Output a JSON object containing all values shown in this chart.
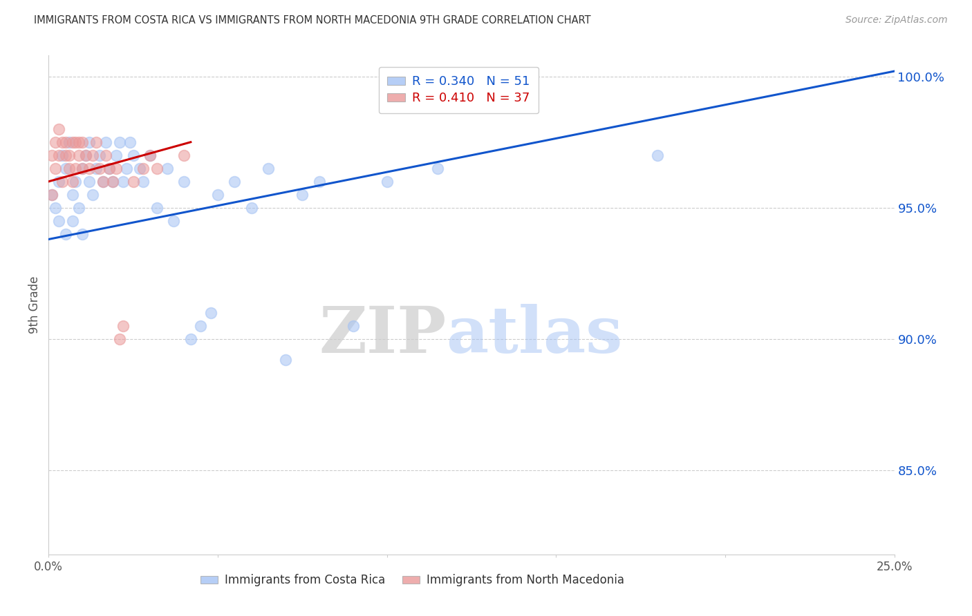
{
  "title": "IMMIGRANTS FROM COSTA RICA VS IMMIGRANTS FROM NORTH MACEDONIA 9TH GRADE CORRELATION CHART",
  "source": "Source: ZipAtlas.com",
  "ylabel": "9th Grade",
  "legend_blue_r": "R = 0.340",
  "legend_blue_n": "N = 51",
  "legend_pink_r": "R = 0.410",
  "legend_pink_n": "N = 37",
  "legend_blue_label": "Immigrants from Costa Rica",
  "legend_pink_label": "Immigrants from North Macedonia",
  "blue_color": "#a4c2f4",
  "pink_color": "#ea9999",
  "blue_line_color": "#1155cc",
  "pink_line_color": "#cc0000",
  "watermark_zip": "ZIP",
  "watermark_atlas": "atlas",
  "xlim": [
    0.0,
    0.25
  ],
  "ylim": [
    0.818,
    1.008
  ],
  "yticks": [
    0.85,
    0.9,
    0.95,
    1.0
  ],
  "ytick_labels": [
    "85.0%",
    "90.0%",
    "95.0%",
    "100.0%"
  ],
  "xticks": [
    0.0,
    0.05,
    0.1,
    0.15,
    0.2,
    0.25
  ],
  "xtick_labels": [
    "0.0%",
    "",
    "",
    "",
    "",
    "25.0%"
  ],
  "blue_x": [
    0.001,
    0.002,
    0.003,
    0.003,
    0.004,
    0.005,
    0.005,
    0.006,
    0.007,
    0.007,
    0.008,
    0.009,
    0.01,
    0.01,
    0.011,
    0.012,
    0.012,
    0.013,
    0.014,
    0.015,
    0.016,
    0.017,
    0.018,
    0.019,
    0.02,
    0.021,
    0.022,
    0.023,
    0.024,
    0.025,
    0.027,
    0.028,
    0.03,
    0.032,
    0.035,
    0.037,
    0.04,
    0.042,
    0.045,
    0.048,
    0.05,
    0.055,
    0.06,
    0.065,
    0.07,
    0.075,
    0.08,
    0.09,
    0.1,
    0.115,
    0.18
  ],
  "blue_y": [
    0.955,
    0.95,
    0.945,
    0.96,
    0.97,
    0.94,
    0.965,
    0.975,
    0.955,
    0.945,
    0.96,
    0.95,
    0.965,
    0.94,
    0.97,
    0.975,
    0.96,
    0.955,
    0.965,
    0.97,
    0.96,
    0.975,
    0.965,
    0.96,
    0.97,
    0.975,
    0.96,
    0.965,
    0.975,
    0.97,
    0.965,
    0.96,
    0.97,
    0.95,
    0.965,
    0.945,
    0.96,
    0.9,
    0.905,
    0.91,
    0.955,
    0.96,
    0.95,
    0.965,
    0.892,
    0.955,
    0.96,
    0.905,
    0.96,
    0.965,
    0.97
  ],
  "pink_x": [
    0.001,
    0.001,
    0.002,
    0.002,
    0.003,
    0.003,
    0.004,
    0.004,
    0.005,
    0.005,
    0.006,
    0.006,
    0.007,
    0.007,
    0.008,
    0.008,
    0.009,
    0.009,
    0.01,
    0.01,
    0.011,
    0.012,
    0.013,
    0.014,
    0.015,
    0.016,
    0.017,
    0.018,
    0.019,
    0.02,
    0.021,
    0.022,
    0.025,
    0.028,
    0.03,
    0.032,
    0.04
  ],
  "pink_y": [
    0.97,
    0.955,
    0.975,
    0.965,
    0.98,
    0.97,
    0.975,
    0.96,
    0.97,
    0.975,
    0.965,
    0.97,
    0.975,
    0.96,
    0.965,
    0.975,
    0.97,
    0.975,
    0.965,
    0.975,
    0.97,
    0.965,
    0.97,
    0.975,
    0.965,
    0.96,
    0.97,
    0.965,
    0.96,
    0.965,
    0.9,
    0.905,
    0.96,
    0.965,
    0.97,
    0.965,
    0.97
  ],
  "blue_trend_x": [
    0.0,
    0.25
  ],
  "blue_trend_y": [
    0.938,
    1.002
  ],
  "pink_trend_x": [
    0.0,
    0.042
  ],
  "pink_trend_y": [
    0.96,
    0.975
  ]
}
